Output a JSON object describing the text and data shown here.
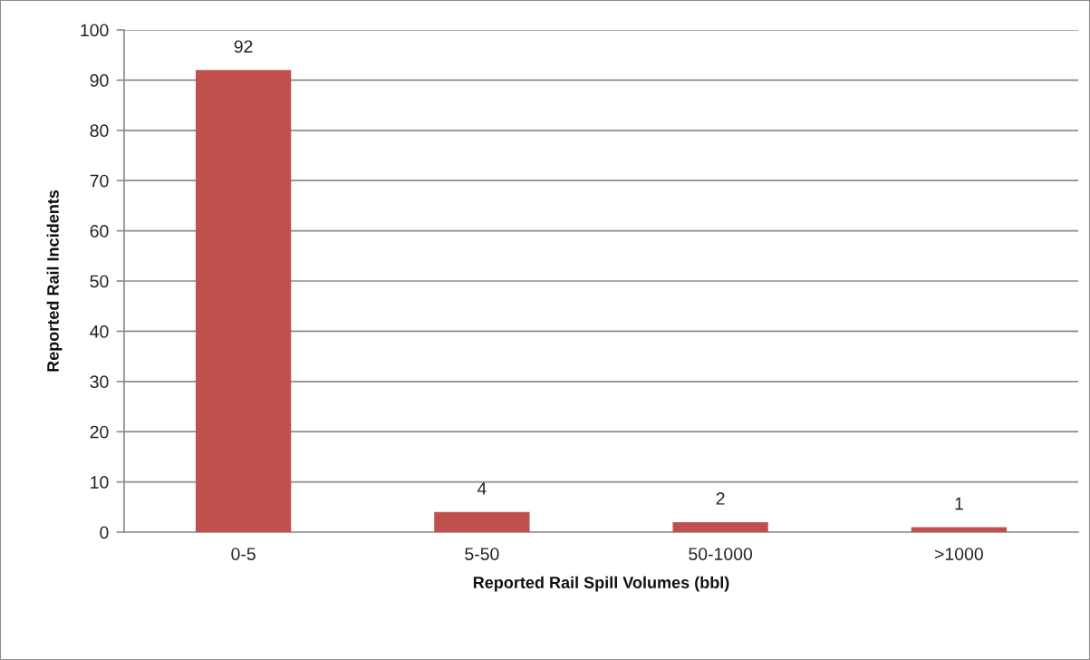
{
  "chart_data": {
    "type": "bar",
    "xlabel": "Reported Rail Spill Volumes (bbl)",
    "ylabel": "Reported Rail Incidents",
    "categories": [
      "0-5",
      "5-50",
      "50-1000",
      ">1000"
    ],
    "values": [
      92,
      4,
      2,
      1
    ],
    "color": "#c0504d",
    "ylim": [
      0,
      100
    ],
    "yticks": [
      0,
      10,
      20,
      30,
      40,
      50,
      60,
      70,
      80,
      90,
      100
    ],
    "grid": "y",
    "data_labels": true,
    "legend": false
  }
}
